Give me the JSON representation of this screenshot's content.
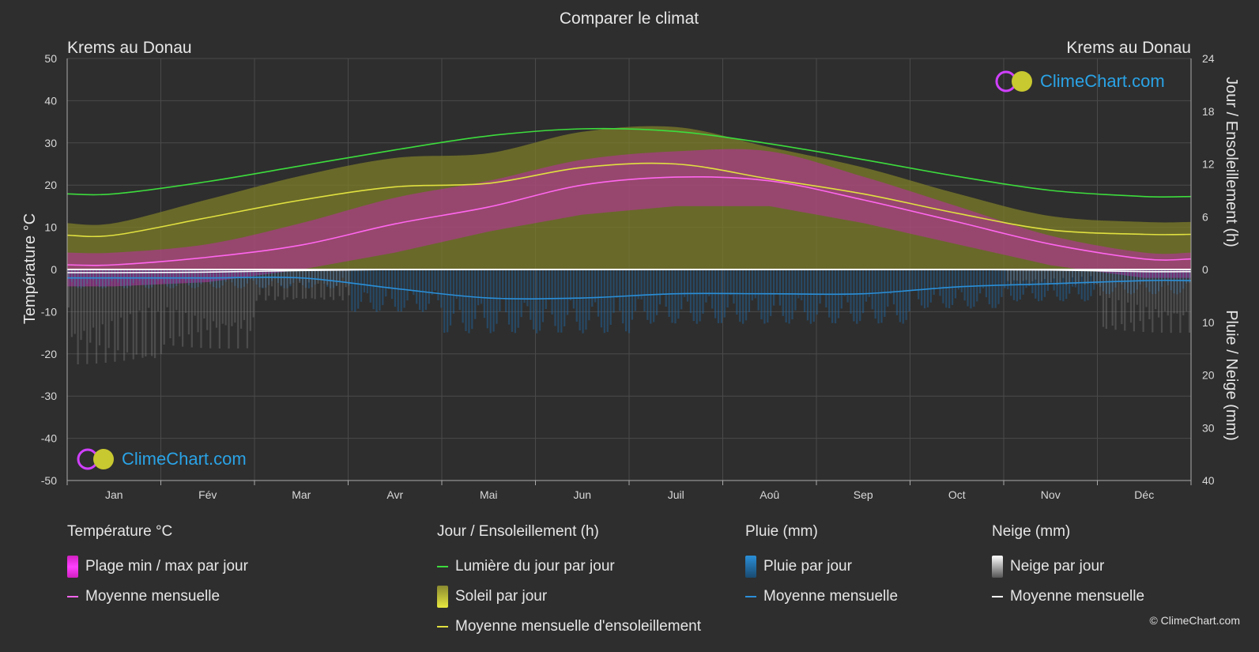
{
  "title": "Comparer le climat",
  "location_left": "Krems au Donau",
  "location_right": "Krems au Donau",
  "brand": "ClimeChart.com",
  "copyright": "© ClimeChart.com",
  "axis_left_label": "Température °C",
  "axis_right_top_label": "Jour / Ensoleillement (h)",
  "axis_right_bottom_label": "Pluie / Neige (mm)",
  "colors": {
    "background": "#2e2e2e",
    "daylight": "#3ddc3d",
    "sunshine_avg": "#e0e040",
    "temp_avg": "#ff66ee",
    "temp_range": "#d020c0",
    "rain_avg": "#2a8fd8",
    "snow_avg": "#ffffff",
    "rain_bar": "#1f6aa8",
    "snow_bar": "#888888"
  },
  "legend": {
    "temperature": {
      "title": "Température °C",
      "range": "Plage min / max par jour",
      "avg": "Moyenne mensuelle"
    },
    "sun": {
      "title": "Jour / Ensoleillement (h)",
      "daylight": "Lumière du jour par jour",
      "sunshine": "Soleil par jour",
      "sunshine_avg": "Moyenne mensuelle d'ensoleillement"
    },
    "rain": {
      "title": "Pluie (mm)",
      "daily": "Pluie par jour",
      "avg": "Moyenne mensuelle"
    },
    "snow": {
      "title": "Neige (mm)",
      "daily": "Neige par jour",
      "avg": "Moyenne mensuelle"
    }
  },
  "chart_data": {
    "type": "line",
    "title": "Comparer le climat",
    "categories": [
      "Jan",
      "Fév",
      "Mar",
      "Avr",
      "Mai",
      "Jun",
      "Juil",
      "Aoû",
      "Sep",
      "Oct",
      "Nov",
      "Déc"
    ],
    "y_left": {
      "label": "Température °C",
      "range": [
        -50,
        50
      ],
      "ticks": [
        50,
        40,
        30,
        20,
        10,
        0,
        -10,
        -20,
        -30,
        -40,
        -50
      ]
    },
    "y_right_top": {
      "label": "Jour / Ensoleillement (h)",
      "range": [
        0,
        24
      ],
      "ticks": [
        24,
        18,
        12,
        6,
        0
      ]
    },
    "y_right_bottom": {
      "label": "Pluie / Neige (mm)",
      "range": [
        0,
        40
      ],
      "ticks": [
        0,
        10,
        20,
        30,
        40
      ]
    },
    "grid": true,
    "series": [
      {
        "name": "Lumière du jour par jour",
        "axis": "hours",
        "values": [
          8.6,
          10.0,
          11.8,
          13.6,
          15.2,
          16.0,
          15.7,
          14.3,
          12.5,
          10.6,
          9.0,
          8.3
        ]
      },
      {
        "name": "Moyenne mensuelle d'ensoleillement",
        "axis": "hours",
        "values": [
          3.9,
          5.9,
          7.9,
          9.4,
          9.8,
          11.6,
          12.0,
          10.3,
          8.6,
          6.4,
          4.5,
          4.0
        ]
      },
      {
        "name": "Moyenne mensuelle",
        "kind": "temperature",
        "axis": "celsius",
        "values": [
          1.1,
          2.9,
          5.8,
          10.8,
          14.8,
          20.0,
          21.9,
          21.0,
          16.5,
          11.3,
          6.0,
          2.5
        ]
      },
      {
        "name": "Moyenne mensuelle",
        "kind": "rain",
        "axis": "mm",
        "values": [
          1.6,
          1.6,
          1.6,
          3.6,
          5.4,
          5.4,
          4.6,
          4.6,
          4.6,
          3.3,
          2.7,
          2.1
        ]
      },
      {
        "name": "Moyenne mensuelle",
        "kind": "snow",
        "axis": "mm",
        "values": [
          0.6,
          0.5,
          0.2,
          0.0,
          0.0,
          0.0,
          0.0,
          0.0,
          0.0,
          0.0,
          0.1,
          0.4
        ]
      }
    ],
    "daily_temp_band": {
      "axis": "celsius",
      "max": [
        4,
        6,
        11,
        17,
        21,
        26,
        28,
        28,
        22,
        15,
        8,
        4
      ],
      "min": [
        -4,
        -3,
        0,
        4,
        9,
        13,
        15,
        15,
        11,
        6,
        1,
        -2
      ]
    }
  }
}
